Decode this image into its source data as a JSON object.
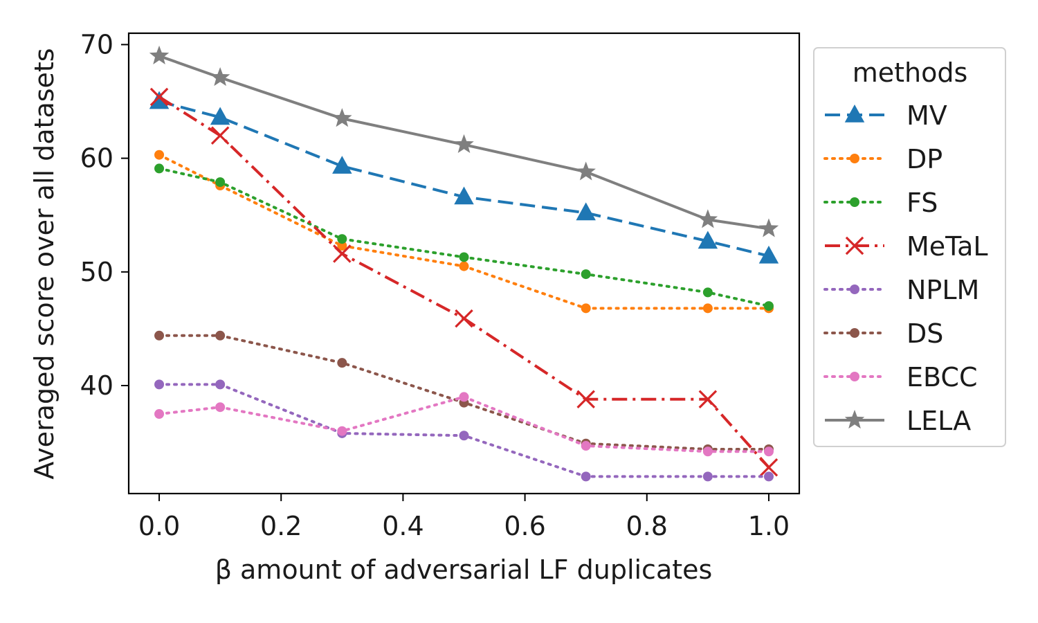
{
  "chart_data": {
    "type": "line",
    "xlabel": "β amount of adversarial LF duplicates",
    "ylabel": "Averaged score over all datasets",
    "xlim": [
      -0.05,
      1.05
    ],
    "ylim": [
      30.5,
      71.0
    ],
    "xticks": [
      0.0,
      0.2,
      0.4,
      0.6,
      0.8,
      1.0
    ],
    "xtick_labels": [
      "0.0",
      "0.2",
      "0.4",
      "0.6",
      "0.8",
      "1.0"
    ],
    "yticks": [
      40,
      50,
      60,
      70
    ],
    "ytick_labels": [
      "40",
      "50",
      "60",
      "70"
    ],
    "grid": false,
    "legend": {
      "title": "methods",
      "position": "outside-right"
    },
    "x": [
      0.0,
      0.1,
      0.3,
      0.5,
      0.7,
      0.9,
      1.0
    ],
    "series": [
      {
        "name": "MV",
        "color": "#1f77b4",
        "line": "dashed",
        "marker": "triangle",
        "values": [
          65.0,
          63.6,
          59.3,
          56.6,
          55.2,
          52.7,
          51.4
        ]
      },
      {
        "name": "DP",
        "color": "#ff7f0e",
        "line": "dotted",
        "marker": "circle",
        "values": [
          60.3,
          57.6,
          52.3,
          50.5,
          46.8,
          46.8,
          46.8
        ]
      },
      {
        "name": "FS",
        "color": "#2ca02c",
        "line": "dotted",
        "marker": "circle",
        "values": [
          59.1,
          57.9,
          52.9,
          51.3,
          49.8,
          48.2,
          47.0
        ]
      },
      {
        "name": "MeTaL",
        "color": "#d62728",
        "line": "dashdot",
        "marker": "x",
        "values": [
          65.4,
          62.0,
          51.6,
          45.9,
          38.8,
          38.8,
          32.8
        ]
      },
      {
        "name": "NPLM",
        "color": "#9467bd",
        "line": "dotted",
        "marker": "circle",
        "values": [
          40.1,
          40.1,
          35.8,
          35.6,
          32.0,
          32.0,
          32.0
        ]
      },
      {
        "name": "DS",
        "color": "#8c564b",
        "line": "dotted",
        "marker": "circle",
        "values": [
          44.4,
          44.4,
          42.0,
          38.5,
          34.9,
          34.4,
          34.4
        ]
      },
      {
        "name": "EBCC",
        "color": "#e377c2",
        "line": "dotted",
        "marker": "circle",
        "values": [
          37.5,
          38.1,
          36.0,
          39.0,
          34.7,
          34.2,
          34.2
        ]
      },
      {
        "name": "LELA",
        "color": "#7f7f7f",
        "line": "solid",
        "marker": "star",
        "values": [
          69.0,
          67.1,
          63.5,
          61.2,
          58.8,
          54.6,
          53.8
        ]
      }
    ]
  }
}
